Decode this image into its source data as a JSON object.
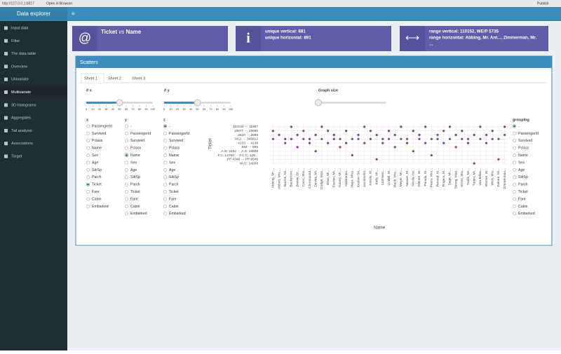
{
  "browser": {
    "url": "http://127.0.0.1:6827",
    "open": "Open in Browser",
    "publish": "Publish"
  },
  "header": {
    "title": "Data explorer"
  },
  "sidebar": {
    "items": [
      "Input data",
      "Filter",
      "The data table",
      "Overview",
      "Univariate",
      "Multivariate",
      "3D histograms",
      "Aggregates",
      "Tail analysis",
      "Associations",
      "Target"
    ],
    "active": 5
  },
  "info_boxes": [
    {
      "x": "Ticket",
      "vs": "vs",
      "y": "Name"
    },
    {
      "lines": [
        "unique vertical: 681",
        "unique horizontal: 891"
      ]
    },
    {
      "lines": [
        "range vertical: 110152, WE/P 5735",
        "range horizontal: Abbing, Mr. Ant..., Zimmerman, Mr.",
        "..."
      ]
    }
  ],
  "panel": {
    "title": "Scatters",
    "tabs": [
      "Sheet 1",
      "Sheet 2",
      "Sheet 3"
    ],
    "active_tab": 0
  },
  "sliders": [
    {
      "label": "# x",
      "min": 0,
      "max": 100,
      "value": 50,
      "ticks": [
        0,
        10,
        20,
        30,
        40,
        50,
        60,
        70,
        80,
        90,
        100
      ]
    },
    {
      "label": "# y",
      "min": 0,
      "max": 100,
      "value": 50,
      "ticks": [
        0,
        10,
        20,
        30,
        40,
        50,
        60,
        70,
        80,
        90,
        100
      ]
    },
    {
      "label": "Graph size"
    }
  ],
  "radios": [
    {
      "label": "x",
      "options": [
        "Passengerld",
        "Survived",
        "Pclass",
        "Name",
        "Sex",
        "Age",
        "SibSp",
        "Parch",
        "Ticket",
        "Fare",
        "Cabin",
        "Embarked"
      ],
      "selected": 8
    },
    {
      "label": "y",
      "options": [
        "-",
        "PassengerId",
        "Survived",
        "Pclass",
        "Name",
        "Sex",
        "Age",
        "SibSp",
        "Parch",
        "Ticket",
        "Fare",
        "Cabin",
        "Embarked"
      ],
      "selected": 4
    },
    {
      "label": "z",
      "options": [
        "-",
        "PassengerId",
        "Survived",
        "Pclass",
        "Name",
        "Sex",
        "Age",
        "SibSp",
        "Parch",
        "Ticket",
        "Fare",
        "Cabin",
        "Embarked"
      ],
      "selected": 0
    },
    {
      "label": "grouping",
      "options": [
        "-",
        "PassengerId",
        "Survived",
        "Pclass",
        "Name",
        "Sex",
        "Age",
        "SibSp",
        "Parch",
        "Ticket",
        "Fare",
        "Cabin",
        "Embarked"
      ],
      "selected": 0
    }
  ],
  "plot": {
    "y_label": "Ticket",
    "x_label": "Name",
    "color": "#5c1a73",
    "y_ticks": [
      "W./C. 14208",
      "PP 4348 ··· PP 9549",
      "F.C. 12750 ··· F.C.C. 135...",
      "A./5. 2152 ··· A.S. 18509",
      "693 ··· 695",
      "4133 ··· 4138",
      "3411 ··· 349912",
      "2620 ··· 2699",
      "19877 ··· 19996",
      "110152 ··· 11967"
    ],
    "x_ticks": [
      "Abbing, Mr....",
      "Abbott, Mrs....",
      "Baclini, Mi...",
      "Backstrom...",
      "Brewe, Dr....",
      "Cacic, Mis...",
      "Chronopoul...",
      "Davies, Mr...",
      "Dodge, Mas...",
      "Elias, Mr....",
      "Fischer, Mr...",
      "Gavey, Mr....",
      "Hakkarain...",
      "Hays, Miss...",
      "Ibrahim Sh...",
      "Jacobsohn...",
      "Jussila, M...",
      "Kelly, Mr....",
      "Lahtinen,...",
      "Lindell, M...",
      "Mack, Mrs....",
      "Meyer, Mr....",
      "Nasser, M...",
      "Nicola-Yar...",
      "O'Brien, M...",
      "Panula, M...",
      "Pears, Mrs...",
      "Renouf, M...",
      "Rogers, M...",
      "Sage, Mr....",
      "Skoog, Mas...",
      "Strom, Mis...",
      "Toufik, Mr...",
      "Turpin, Mr...",
      "van Billiar...",
      "Warren, M...",
      "Wick, Mis...",
      "Zabour, Mi...",
      "Zimmerman..."
    ],
    "points": [
      [
        0,
        6
      ],
      [
        0,
        8
      ],
      [
        1,
        7
      ],
      [
        2,
        5
      ],
      [
        2,
        6
      ],
      [
        3,
        6
      ],
      [
        3,
        9
      ],
      [
        4,
        7
      ],
      [
        4,
        4
      ],
      [
        5,
        6
      ],
      [
        5,
        8
      ],
      [
        6,
        5
      ],
      [
        6,
        6
      ],
      [
        7,
        7
      ],
      [
        7,
        3
      ],
      [
        8,
        6
      ],
      [
        8,
        9
      ],
      [
        9,
        5
      ],
      [
        9,
        8
      ],
      [
        10,
        6
      ],
      [
        10,
        7
      ],
      [
        11,
        4
      ],
      [
        11,
        6
      ],
      [
        12,
        8
      ],
      [
        12,
        5
      ],
      [
        13,
        6
      ],
      [
        13,
        2
      ],
      [
        14,
        7
      ],
      [
        14,
        6
      ],
      [
        15,
        9
      ],
      [
        15,
        5
      ],
      [
        16,
        6
      ],
      [
        16,
        8
      ],
      [
        17,
        7
      ],
      [
        17,
        1
      ],
      [
        18,
        6
      ],
      [
        18,
        5
      ],
      [
        19,
        8
      ],
      [
        19,
        6
      ],
      [
        20,
        4
      ],
      [
        20,
        7
      ],
      [
        21,
        6
      ],
      [
        21,
        9
      ],
      [
        22,
        5
      ],
      [
        22,
        6
      ],
      [
        23,
        8
      ],
      [
        23,
        3
      ],
      [
        24,
        6
      ],
      [
        24,
        7
      ],
      [
        25,
        5
      ],
      [
        25,
        9
      ],
      [
        26,
        6
      ],
      [
        26,
        2
      ],
      [
        27,
        7
      ],
      [
        27,
        6
      ],
      [
        28,
        8
      ],
      [
        28,
        5
      ],
      [
        29,
        6
      ],
      [
        29,
        9
      ],
      [
        30,
        4
      ],
      [
        30,
        7
      ],
      [
        31,
        6
      ],
      [
        31,
        8
      ],
      [
        32,
        5
      ],
      [
        32,
        6
      ],
      [
        33,
        7
      ],
      [
        33,
        0
      ],
      [
        34,
        6
      ],
      [
        34,
        9
      ],
      [
        35,
        5
      ],
      [
        35,
        7
      ],
      [
        36,
        6
      ],
      [
        36,
        8
      ],
      [
        37,
        1
      ],
      [
        37,
        6
      ],
      [
        38,
        7
      ],
      [
        38,
        9
      ]
    ]
  }
}
